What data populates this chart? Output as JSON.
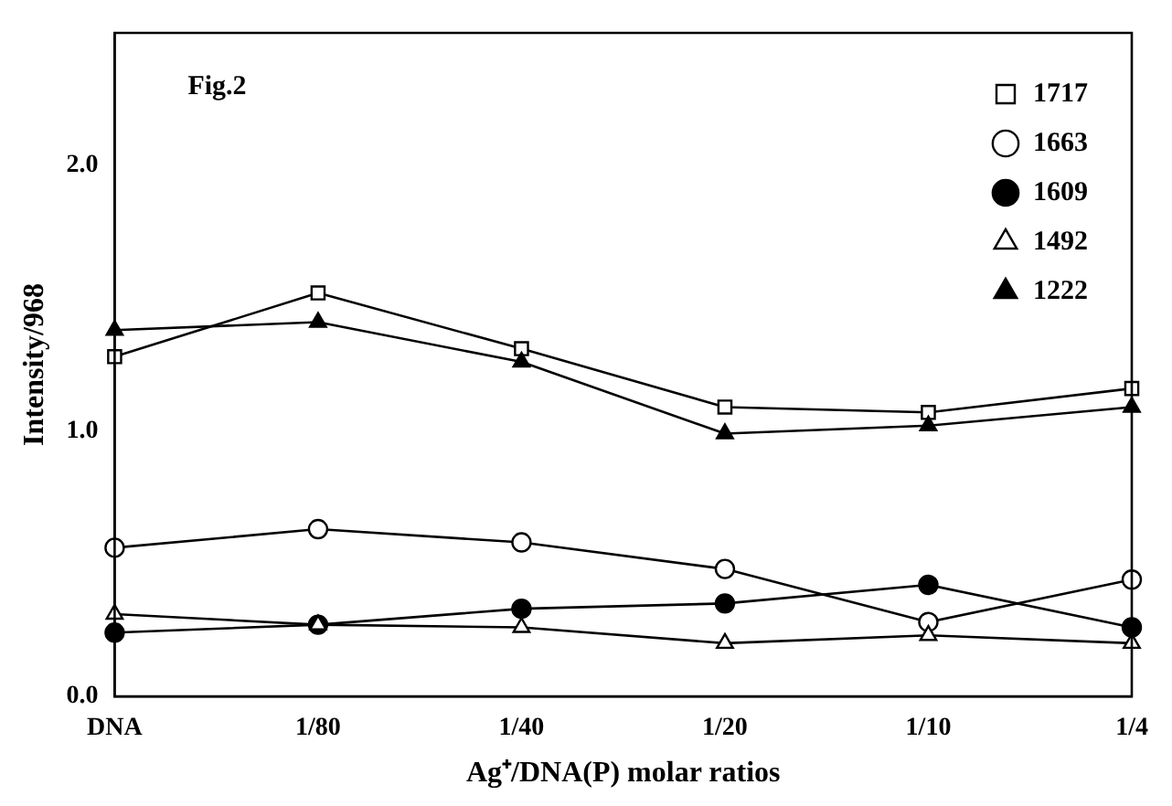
{
  "chart_data": {
    "type": "line",
    "xlabel": "Ag⁺/DNA(P) molar ratios",
    "ylabel": "Intensity/968",
    "annotations": [
      "Fig.2"
    ],
    "categories": [
      "DNA",
      "1/80",
      "1/40",
      "1/20",
      "1/10",
      "1/4"
    ],
    "series": [
      {
        "name": "1717",
        "color": "#000000",
        "colors": [
          "#ffffff",
          "#ffffff",
          "#ffffff",
          "#ffffff",
          "#ffffff",
          "#ffffff"
        ],
        "marker": "square",
        "values": [
          1.28,
          1.52,
          1.31,
          1.09,
          1.07,
          1.16
        ]
      },
      {
        "name": "1663",
        "color": "#000000",
        "colors": [
          "#ffffff",
          "#ffffff",
          "#ffffff",
          "#ffffff",
          "#ffffff",
          "#ffffff"
        ],
        "marker": "circle",
        "values": [
          0.56,
          0.63,
          0.58,
          0.48,
          0.28,
          0.44
        ]
      },
      {
        "name": "1609",
        "color": "#000000",
        "marker": "circle",
        "values": [
          0.24,
          0.27,
          0.33,
          0.35,
          0.42,
          0.26
        ]
      },
      {
        "name": "1492",
        "color": "#000000",
        "colors": [
          "#ffffff",
          "#ffffff",
          "#ffffff",
          "#ffffff",
          "#ffffff",
          "#ffffff"
        ],
        "marker": "triangle",
        "values": [
          0.31,
          0.27,
          0.26,
          0.2,
          0.23,
          0.2
        ]
      },
      {
        "name": "1222",
        "color": "#000000",
        "marker": "triangle",
        "values": [
          1.38,
          1.41,
          1.26,
          0.99,
          1.02,
          1.09
        ]
      }
    ],
    "ylim": [
      0,
      2.5
    ],
    "yticks": [
      {
        "value": 0,
        "label": "0.0"
      },
      {
        "value": 1,
        "label": "1.0"
      },
      {
        "value": 2,
        "label": "2.0"
      }
    ],
    "legend": "top right",
    "line_style": "solid"
  }
}
